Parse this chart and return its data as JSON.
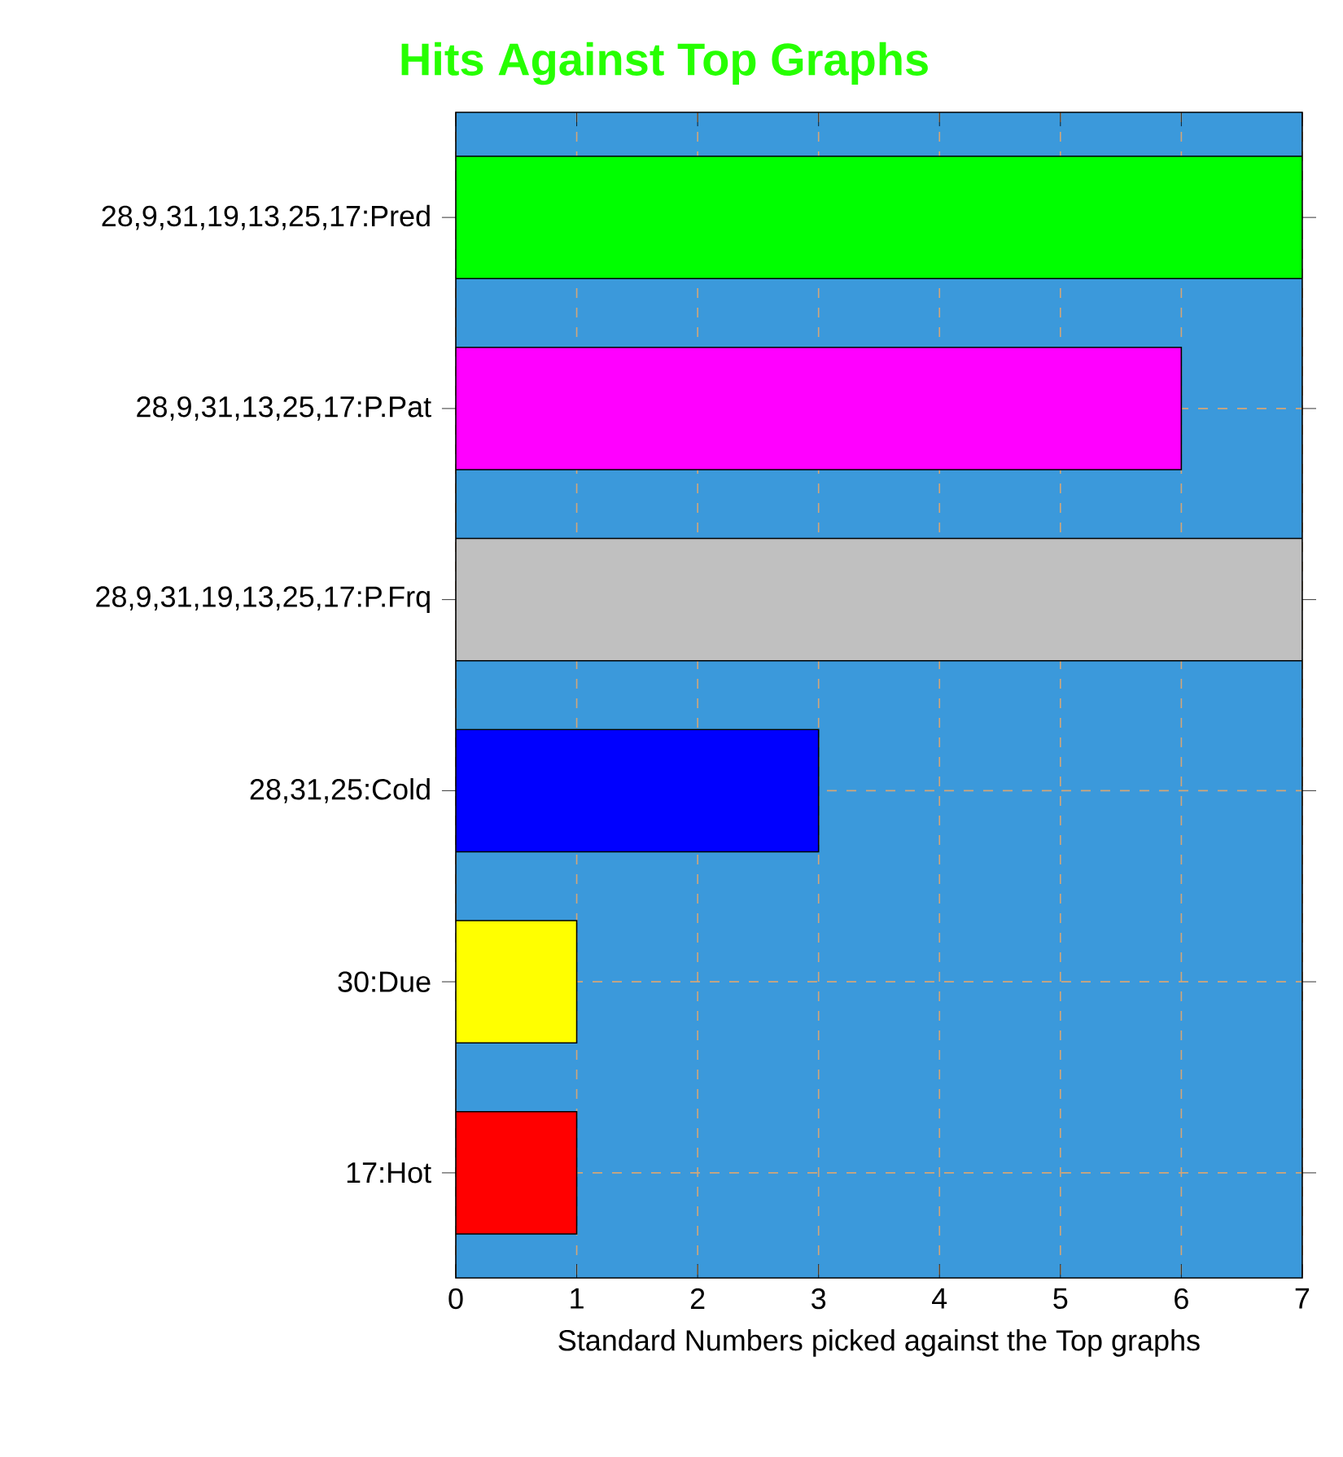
{
  "chart_data": {
    "type": "bar",
    "orientation": "horizontal",
    "title": "Hits Against Top Graphs",
    "xlabel": "Standard Numbers picked against the Top graphs",
    "categories": [
      "28,9,31,19,13,25,17:Pred",
      "28,9,31,13,25,17:P.Pat",
      "28,9,31,19,13,25,17:P.Frq",
      "28,31,25:Cold",
      "30:Due",
      "17:Hot"
    ],
    "values": [
      7,
      6,
      7,
      3,
      1,
      1
    ],
    "colors": [
      "#00ff00",
      "#ff00ff",
      "#c0c0c0",
      "#0000ff",
      "#ffff00",
      "#ff0000"
    ],
    "xlim": [
      0,
      7
    ],
    "xticks": [
      0,
      1,
      2,
      3,
      4,
      5,
      6,
      7
    ],
    "grid": true
  }
}
